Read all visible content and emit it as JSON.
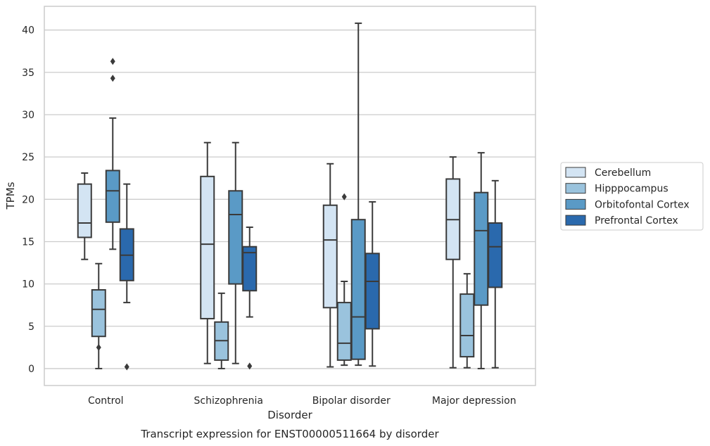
{
  "chart_data": {
    "type": "box",
    "title": "Transcript expression for ENST00000511664 by disorder",
    "xlabel": "Disorder",
    "ylabel": "TPMs",
    "ylim": [
      -2,
      42.8
    ],
    "yticks": [
      0,
      5,
      10,
      15,
      20,
      25,
      30,
      35,
      40
    ],
    "grid": "horizontal",
    "legend_position": "right",
    "categories": [
      "Control",
      "Schizophrenia",
      "Bipolar disorder",
      "Major depression"
    ],
    "series": [
      {
        "name": "Cerebellum",
        "color": "#d3e4f3",
        "boxes": [
          {
            "whisker_low": 12.9,
            "q1": 15.5,
            "median": 17.2,
            "q3": 21.8,
            "whisker_high": 23.1,
            "outliers": []
          },
          {
            "whisker_low": 0.6,
            "q1": 5.9,
            "median": 14.7,
            "q3": 22.7,
            "whisker_high": 26.7,
            "outliers": []
          },
          {
            "whisker_low": 0.2,
            "q1": 7.2,
            "median": 15.2,
            "q3": 19.3,
            "whisker_high": 24.2,
            "outliers": []
          },
          {
            "whisker_low": 0.1,
            "q1": 12.9,
            "median": 17.6,
            "q3": 22.4,
            "whisker_high": 25.0,
            "outliers": []
          }
        ]
      },
      {
        "name": "Hipppocampus",
        "color": "#9ac3dd",
        "boxes": [
          {
            "whisker_low": 0.0,
            "q1": 3.8,
            "median": 7.0,
            "q3": 9.3,
            "whisker_high": 12.4,
            "outliers": [
              2.5
            ]
          },
          {
            "whisker_low": 0.0,
            "q1": 1.0,
            "median": 3.3,
            "q3": 5.5,
            "whisker_high": 8.9,
            "outliers": []
          },
          {
            "whisker_low": 0.4,
            "q1": 1.0,
            "median": 3.0,
            "q3": 7.8,
            "whisker_high": 10.3,
            "outliers": [
              20.3
            ]
          },
          {
            "whisker_low": 0.1,
            "q1": 1.4,
            "median": 3.9,
            "q3": 8.8,
            "whisker_high": 11.2,
            "outliers": []
          }
        ]
      },
      {
        "name": "Orbitofontal Cortex",
        "color": "#5a9ac6",
        "boxes": [
          {
            "whisker_low": 14.1,
            "q1": 17.3,
            "median": 21.0,
            "q3": 23.4,
            "whisker_high": 29.6,
            "outliers": [
              34.3,
              36.3
            ]
          },
          {
            "whisker_low": 0.6,
            "q1": 10.0,
            "median": 18.2,
            "q3": 21.0,
            "whisker_high": 26.7,
            "outliers": []
          },
          {
            "whisker_low": 0.4,
            "q1": 1.1,
            "median": 6.1,
            "q3": 17.6,
            "whisker_high": 40.8,
            "outliers": []
          },
          {
            "whisker_low": 0.0,
            "q1": 7.5,
            "median": 16.3,
            "q3": 20.8,
            "whisker_high": 25.5,
            "outliers": []
          }
        ]
      },
      {
        "name": "Prefrontal Cortex",
        "color": "#2a69ad",
        "boxes": [
          {
            "whisker_low": 7.8,
            "q1": 10.4,
            "median": 13.4,
            "q3": 16.5,
            "whisker_high": 21.8,
            "outliers": [
              0.2
            ]
          },
          {
            "whisker_low": 6.1,
            "q1": 9.2,
            "median": 13.7,
            "q3": 14.4,
            "whisker_high": 16.7,
            "outliers": [
              0.3
            ]
          },
          {
            "whisker_low": 0.3,
            "q1": 4.7,
            "median": 10.3,
            "q3": 13.6,
            "whisker_high": 19.7,
            "outliers": []
          },
          {
            "whisker_low": 0.1,
            "q1": 9.6,
            "median": 14.4,
            "q3": 17.2,
            "whisker_high": 22.2,
            "outliers": []
          }
        ]
      }
    ]
  }
}
